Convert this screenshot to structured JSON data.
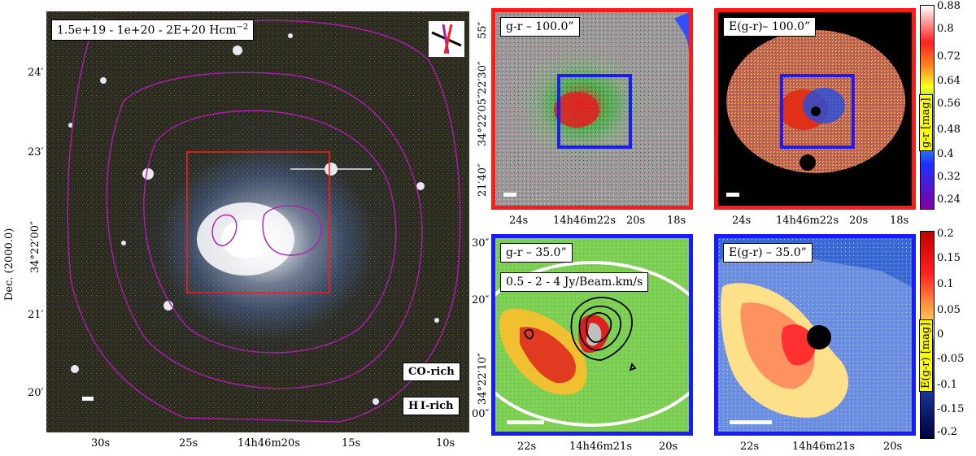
{
  "main_panel": {
    "contour_label": "1.5e+19 - 1e+20 - 2E+20 Hcm",
    "contour_label_exp": "−2",
    "legend_co": "CO-rich",
    "legend_hi": "H I-rich",
    "ylabel": "Dec. (2000.0)",
    "yticks": [
      "24′",
      "23′",
      "34°22′00″",
      "21′",
      "20′"
    ],
    "xticks": [
      "30s",
      "25s",
      "14h46m20s",
      "15s",
      "10s"
    ]
  },
  "top_left": {
    "label": "g-r – 100.0”",
    "yticks": [
      "55″",
      "34°22′05″22′30″",
      "21′40″"
    ],
    "xticks": [
      "24s",
      "14h46m22s",
      "20s",
      "18s"
    ]
  },
  "top_right": {
    "label": "E(g-r)– 100.0”",
    "xticks": [
      "24s",
      "14h46m22s",
      "20s",
      "18s"
    ],
    "colorbar": {
      "ticks": [
        "0.88",
        "0.8",
        "0.72",
        "0.64",
        "0.56",
        "0.48",
        "0.4",
        "0.32",
        "0.24"
      ],
      "title": "g-r [mag]"
    }
  },
  "bottom_left": {
    "label": "g-r – 35.0”",
    "contour_label": "0.5 - 2 - 4 Jy/Beam.km/s",
    "yticks": [
      "30″",
      "20″",
      "34°22′10″",
      "00″"
    ],
    "xticks": [
      "22s",
      "14h46m21s",
      "20s"
    ]
  },
  "bottom_right": {
    "label": "E(g-r) – 35.0”",
    "xticks": [
      "22s",
      "14h46m21s",
      "20s"
    ],
    "colorbar": {
      "ticks": [
        "0.2",
        "0.15",
        "0.1",
        "0.05",
        "0",
        "-0.05",
        "-0.1",
        "-0.15",
        "-0.2"
      ],
      "title": "E(g-r) [mag]"
    }
  },
  "colors": {
    "red_frame": "#ff1a1a",
    "blue_frame": "#1a1aff",
    "contour_purple": "#b01bb0"
  }
}
